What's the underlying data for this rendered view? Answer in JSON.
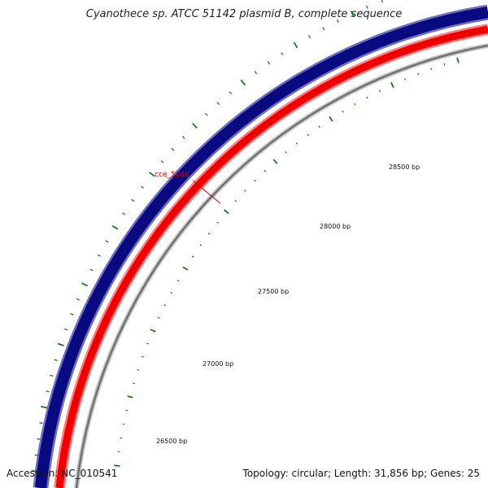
{
  "title": "Cyanothece sp. ATCC 51142 plasmid B, complete sequence",
  "footer": {
    "accession_label": "Accession: ",
    "accession": "NC_010541",
    "info": "Topology: circular; Length: 31,856 bp; Genes: 25"
  },
  "gene_label": "cce_5280",
  "ticks": [
    {
      "bp": 26500,
      "label": "26500 bp"
    },
    {
      "bp": 27000,
      "label": "27000 bp"
    },
    {
      "bp": 27500,
      "label": "27500 bp"
    },
    {
      "bp": 28000,
      "label": "28000 bp"
    },
    {
      "bp": 28500,
      "label": "28500 bp"
    }
  ],
  "colors": {
    "forward_strand": "#0a0a80",
    "reverse_strand": "#ff0000",
    "backbone": "#8c8c8c",
    "tick": "#1a7a1a",
    "gene_label": "#cc0000"
  }
}
